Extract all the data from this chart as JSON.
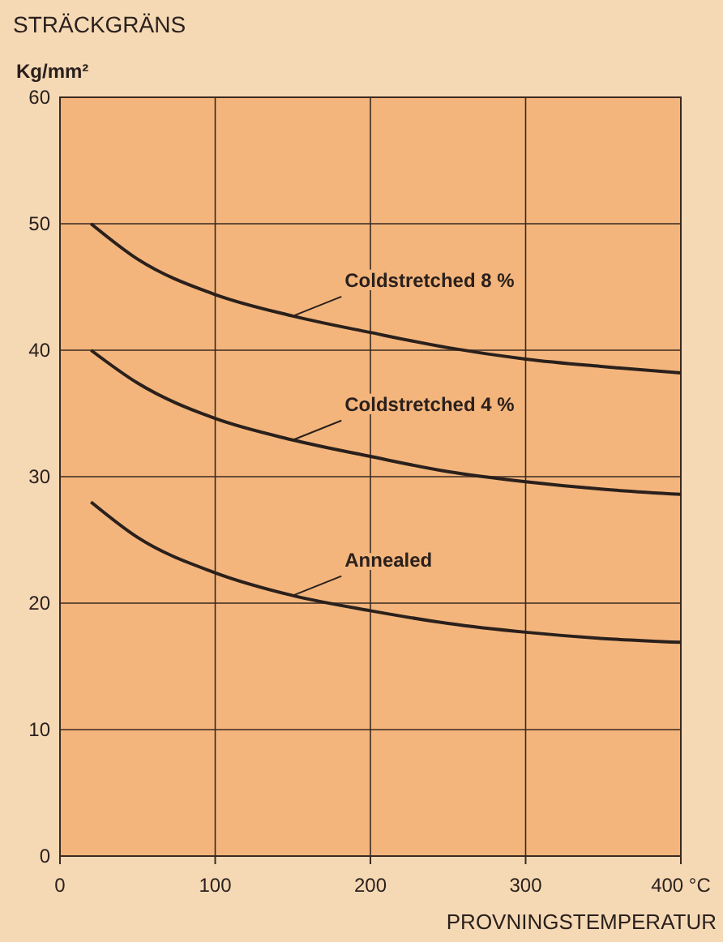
{
  "chart_data": {
    "type": "line",
    "title": "STRÄCKGRÄNS",
    "ylabel": "Kg/mm²",
    "xlabel": "PROVNINGSTEMPERATUR",
    "xlim": [
      0,
      400
    ],
    "xticks": [
      0,
      100,
      200,
      300,
      {
        "value": 400,
        "label": "400 °C"
      }
    ],
    "ylim": [
      0,
      60
    ],
    "yticks": [
      0,
      10,
      20,
      30,
      40,
      50,
      60
    ],
    "grid": true,
    "series": [
      {
        "name": "Coldstretched 8 %",
        "color": "#2a201c",
        "x": [
          20,
          50,
          100,
          150,
          200,
          250,
          300,
          350,
          400
        ],
        "values": [
          50,
          47.2,
          44.4,
          42.7,
          41.4,
          40.2,
          39.3,
          38.7,
          38.2
        ]
      },
      {
        "name": "Coldstretched 4 %",
        "color": "#2a201c",
        "x": [
          20,
          50,
          100,
          150,
          200,
          250,
          300,
          350,
          400
        ],
        "values": [
          40,
          37.4,
          34.6,
          32.9,
          31.6,
          30.4,
          29.6,
          29.0,
          28.6
        ]
      },
      {
        "name": "Annealed",
        "color": "#2a201c",
        "x": [
          20,
          50,
          100,
          150,
          200,
          250,
          300,
          350,
          400
        ],
        "values": [
          28,
          25.2,
          22.4,
          20.6,
          19.4,
          18.4,
          17.7,
          17.2,
          16.9
        ]
      }
    ]
  }
}
